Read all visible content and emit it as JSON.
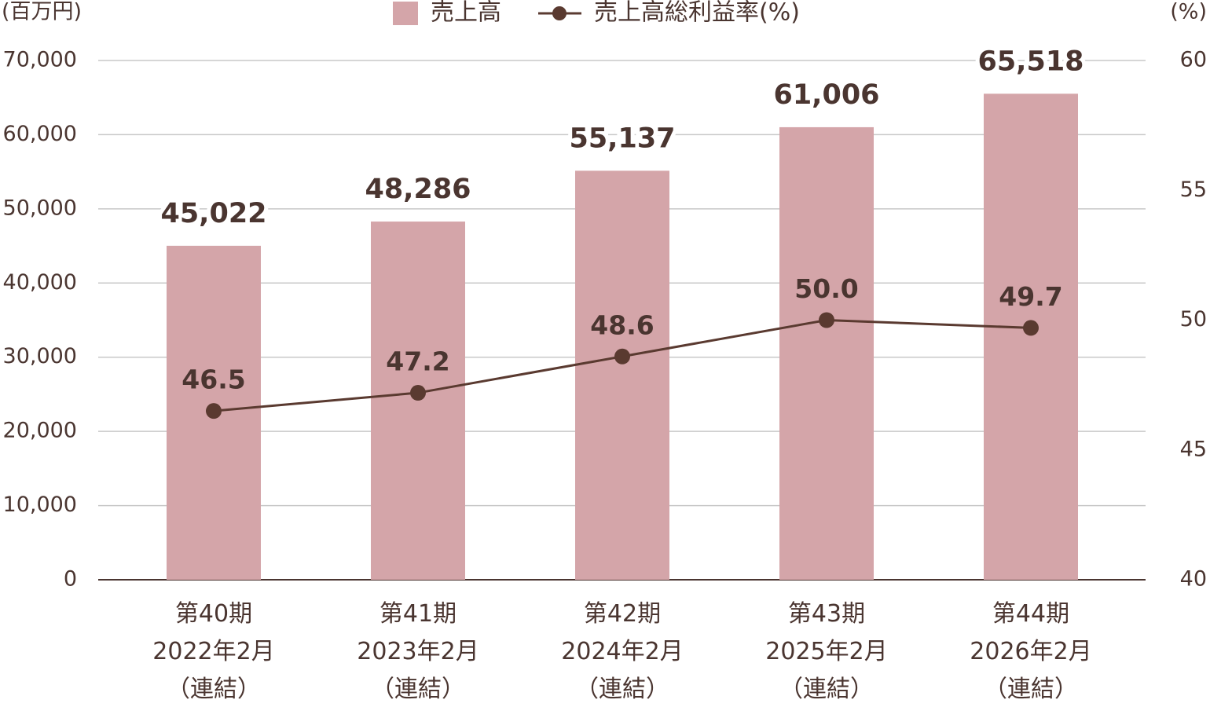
{
  "chart_data": {
    "type": "bar",
    "y_axis_label": "(百万円)",
    "y2_axis_label": "(%)",
    "categories": [
      "第40期\n2022年2月\n（連結）",
      "第41期\n2023年2月\n（連結）",
      "第42期\n2024年2月\n（連結）",
      "第43期\n2025年2月\n（連結）",
      "第44期\n2026年2月\n（連結）"
    ],
    "series": [
      {
        "name": "売上高",
        "type": "bar",
        "color": "#d4a5a9",
        "values": [
          45022,
          48286,
          55137,
          61006,
          65518
        ],
        "value_labels": [
          "45,022",
          "48,286",
          "55,137",
          "61,006",
          "65,518"
        ]
      },
      {
        "name": "売上高総利益率(%)",
        "type": "line",
        "axis": "y2",
        "color": "#5a3a30",
        "values": [
          46.5,
          47.2,
          48.6,
          50.0,
          49.7
        ],
        "value_labels": [
          "46.5",
          "47.2",
          "48.6",
          "50.0",
          "49.7"
        ]
      }
    ],
    "ylim": [
      0,
      70000
    ],
    "yticks": [
      0,
      {
        "value": 10000,
        "label": "10,000"
      },
      {
        "value": 20000,
        "label": "20,000"
      },
      {
        "value": 30000,
        "label": "30,000"
      },
      {
        "value": 40000,
        "label": "40,000"
      },
      {
        "value": 50000,
        "label": "50,000"
      },
      {
        "value": 60000,
        "label": "60,000"
      },
      {
        "value": 70000,
        "label": "70,000"
      }
    ],
    "y2lim": [
      40,
      60
    ],
    "y2ticks": [
      40,
      45,
      50,
      55,
      60
    ],
    "grid": true
  }
}
